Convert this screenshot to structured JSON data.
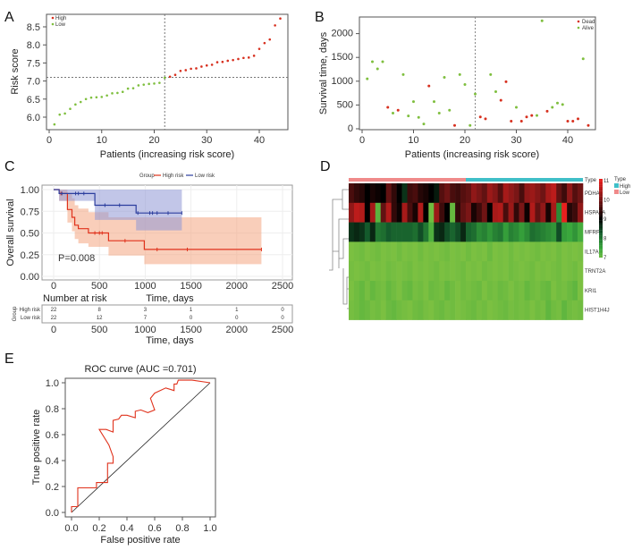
{
  "chart_data": [
    {
      "panel": "A",
      "type": "scatter",
      "xlabel": "Patients (increasing risk score)",
      "ylabel": "Risk score",
      "xticks": [
        "0",
        "10",
        "20",
        "30",
        "40"
      ],
      "yticks": [
        "6.0",
        "6.5",
        "7.0",
        "7.5",
        "8.0",
        "8.5"
      ],
      "xlim": [
        0,
        45
      ],
      "ylim": [
        5.75,
        8.8
      ],
      "legend": [
        {
          "label": "High",
          "color": "#d7301f"
        },
        {
          "label": "Low",
          "color": "#7fbf3f"
        }
      ],
      "legend_position": "top-left",
      "cutoff_x": 22,
      "cutoff_y": 7.1,
      "values": [
        5.8,
        6.07,
        6.1,
        6.23,
        6.35,
        6.42,
        6.5,
        6.54,
        6.55,
        6.56,
        6.6,
        6.66,
        6.67,
        6.7,
        6.79,
        6.8,
        6.88,
        6.9,
        6.92,
        6.93,
        6.95,
        7.09,
        7.12,
        7.17,
        7.28,
        7.3,
        7.34,
        7.35,
        7.4,
        7.43,
        7.45,
        7.52,
        7.53,
        7.56,
        7.58,
        7.61,
        7.64,
        7.65,
        7.7,
        7.89,
        8.05,
        8.15,
        8.54,
        8.73
      ],
      "groups": [
        "Low",
        "Low",
        "Low",
        "Low",
        "Low",
        "Low",
        "Low",
        "Low",
        "Low",
        "Low",
        "Low",
        "Low",
        "Low",
        "Low",
        "Low",
        "Low",
        "Low",
        "Low",
        "Low",
        "Low",
        "Low",
        "Low",
        "High",
        "High",
        "High",
        "High",
        "High",
        "High",
        "High",
        "High",
        "High",
        "High",
        "High",
        "High",
        "High",
        "High",
        "High",
        "High",
        "High",
        "High",
        "High",
        "High",
        "High",
        "High"
      ]
    },
    {
      "panel": "B",
      "type": "scatter",
      "xlabel": "Patients (increasing risk score)",
      "ylabel": "Survival time, days",
      "xticks": [
        "0",
        "10",
        "20",
        "30",
        "40"
      ],
      "yticks": [
        "0",
        "500",
        "1000",
        "1500",
        "2000"
      ],
      "xlim": [
        0,
        45
      ],
      "ylim": [
        0,
        2300
      ],
      "legend": [
        {
          "label": "Dead",
          "color": "#d7301f"
        },
        {
          "label": "Alive",
          "color": "#7fbf3f"
        }
      ],
      "legend_position": "top-right",
      "cutoff_x": 22,
      "values": [
        1050,
        1410,
        1260,
        1410,
        450,
        330,
        390,
        1140,
        270,
        570,
        240,
        100,
        900,
        570,
        330,
        1080,
        390,
        70,
        1140,
        930,
        70,
        730,
        250,
        210,
        1140,
        780,
        600,
        990,
        160,
        450,
        160,
        250,
        280,
        280,
        2270,
        370,
        450,
        540,
        510,
        160,
        160,
        210,
        1470,
        70
      ],
      "status": [
        "Alive",
        "Alive",
        "Alive",
        "Alive",
        "Dead",
        "Alive",
        "Dead",
        "Alive",
        "Alive",
        "Alive",
        "Alive",
        "Alive",
        "Dead",
        "Alive",
        "Alive",
        "Alive",
        "Alive",
        "Dead",
        "Alive",
        "Alive",
        "Alive",
        "Alive",
        "Dead",
        "Dead",
        "Alive",
        "Alive",
        "Dead",
        "Dead",
        "Dead",
        "Alive",
        "Dead",
        "Dead",
        "Dead",
        "Alive",
        "Alive",
        "Dead",
        "Alive",
        "Alive",
        "Alive",
        "Dead",
        "Dead",
        "Dead",
        "Alive",
        "Dead"
      ]
    },
    {
      "panel": "C",
      "type": "line",
      "title_legend": "Group",
      "xlabel": "Time, days",
      "ylabel": "Overall survival",
      "xticks": [
        "0",
        "500",
        "1000",
        "1500",
        "2000",
        "2500"
      ],
      "yticks": [
        "0.00",
        "0.25",
        "0.50",
        "0.75",
        "1.00"
      ],
      "xlim": [
        0,
        2500
      ],
      "ylim": [
        0,
        1
      ],
      "annotation": "P=0.008",
      "series": [
        {
          "name": "High risk",
          "color": "#e0321c",
          "band": "#f4a582",
          "steps": [
            [
              0,
              1
            ],
            [
              60,
              0.955
            ],
            [
              150,
              0.77
            ],
            [
              200,
              0.68
            ],
            [
              230,
              0.59
            ],
            [
              270,
              0.55
            ],
            [
              380,
              0.5
            ],
            [
              600,
              0.41
            ],
            [
              990,
              0.31
            ],
            [
              2270,
              0.31
            ]
          ],
          "lower": [
            [
              0,
              1
            ],
            [
              60,
              0.87
            ],
            [
              150,
              0.62
            ],
            [
              200,
              0.52
            ],
            [
              230,
              0.43
            ],
            [
              270,
              0.38
            ],
            [
              380,
              0.34
            ],
            [
              600,
              0.24
            ],
            [
              990,
              0.14
            ],
            [
              2270,
              0.14
            ]
          ],
          "upper": [
            [
              0,
              1
            ],
            [
              60,
              1
            ],
            [
              150,
              0.95
            ],
            [
              200,
              0.9
            ],
            [
              230,
              0.82
            ],
            [
              270,
              0.78
            ],
            [
              380,
              0.74
            ],
            [
              600,
              0.68
            ],
            [
              990,
              0.68
            ],
            [
              2270,
              0.68
            ]
          ],
          "censored": [
            80,
            450,
            500,
            530,
            780,
            1130,
            1460,
            2270
          ]
        },
        {
          "name": "Low risk",
          "color": "#2c3e9e",
          "band": "#8f97d6",
          "steps": [
            [
              0,
              1
            ],
            [
              60,
              0.955
            ],
            [
              450,
              0.82
            ],
            [
              900,
              0.73
            ],
            [
              1400,
              0.73
            ]
          ],
          "lower": [
            [
              0,
              1
            ],
            [
              60,
              0.87
            ],
            [
              450,
              0.65
            ],
            [
              900,
              0.53
            ],
            [
              1400,
              0.53
            ]
          ],
          "upper": [
            [
              0,
              1
            ],
            [
              60,
              1
            ],
            [
              450,
              1
            ],
            [
              900,
              1
            ],
            [
              1400,
              1
            ]
          ],
          "censored": [
            90,
            240,
            270,
            330,
            560,
            720,
            920,
            1050,
            1080,
            1130,
            1250,
            1400
          ]
        }
      ],
      "risk_table": {
        "title": "Number at risk",
        "axis_title": "Group",
        "xlabel": "Time, days",
        "rows": [
          {
            "name": "High risk",
            "values": [
              "22",
              "8",
              "3",
              "1",
              "1",
              "0"
            ]
          },
          {
            "name": "Low risk",
            "values": [
              "22",
              "12",
              "7",
              "0",
              "0",
              "0"
            ]
          }
        ]
      }
    },
    {
      "panel": "D",
      "type": "heatmap",
      "type_label": "Type",
      "scale_ticks": [
        "11",
        "10",
        "9",
        "8",
        "7"
      ],
      "scale_range": [
        7,
        11
      ],
      "legend_title": "Type",
      "legend": [
        {
          "label": "High",
          "color": "#3fbfc8"
        },
        {
          "label": "Low",
          "color": "#f08a8a"
        }
      ],
      "column_groups": {
        "Low": 22,
        "High": 22
      },
      "rows": [
        "PDHA1",
        "HSPA1A",
        "MFRP",
        "IL17A",
        "TRNT2A",
        "KRI1",
        "HIST1H4J"
      ],
      "values": [
        [
          9.6,
          9.4,
          9.3,
          9.0,
          9.2,
          9.1,
          9.0,
          9.8,
          9.4,
          9.0,
          8.6,
          9.5,
          9.6,
          9.3,
          9.2,
          9.0,
          8.8,
          9.7,
          9.9,
          9.6,
          9.5,
          9.7,
          9.8,
          10.2,
          10.0,
          9.8,
          10.3,
          10.1,
          9.7,
          10.4,
          10.2,
          10.0,
          9.6,
          10.2,
          10.3,
          10.1,
          9.9,
          10.4,
          10.6,
          9.8,
          9.5,
          10.2,
          9.7,
          9.9
        ],
        [
          10.2,
          10.6,
          10.5,
          9.0,
          10.4,
          7.2,
          9.8,
          10.5,
          9.4,
          9.1,
          10.4,
          9.6,
          9.2,
          10.5,
          9.0,
          7.0,
          10.3,
          9.5,
          9.0,
          7.1,
          9.4,
          9.8,
          10.0,
          9.2,
          9.5,
          9.9,
          9.0,
          10.4,
          10.5,
          9.6,
          10.3,
          9.4,
          10.0,
          9.1,
          10.5,
          9.8,
          10.2,
          9.2,
          10.4,
          7.8,
          11.0,
          9.3,
          9.5,
          10.2
        ],
        [
          8.6,
          8.7,
          8.6,
          8.3,
          8.7,
          8.0,
          8.1,
          8.3,
          8.2,
          8.2,
          8.2,
          8.2,
          8.1,
          8.4,
          8.0,
          7.3,
          8.6,
          8.7,
          8.4,
          8.2,
          8.4,
          8.7,
          8.2,
          8.1,
          7.8,
          7.9,
          7.7,
          7.9,
          8.0,
          7.6,
          7.9,
          7.8,
          7.6,
          7.8,
          8.1,
          8.0,
          7.9,
          7.8,
          7.7,
          8.4,
          7.6,
          7.5,
          7.7,
          7.4
        ],
        [
          6.9,
          6.95,
          7.0,
          6.9,
          6.95,
          7.0,
          6.9,
          6.95,
          6.9,
          7.0,
          6.9,
          6.95,
          6.9,
          7.0,
          6.9,
          6.95,
          6.9,
          6.95,
          7.0,
          6.9,
          6.95,
          6.9,
          7.0,
          6.9,
          6.95,
          6.9,
          7.05,
          6.9,
          6.95,
          6.9,
          7.0,
          6.9,
          6.95,
          6.9,
          6.95,
          7.0,
          6.9,
          6.95,
          6.9,
          7.0,
          6.9,
          6.95,
          6.9,
          6.95
        ],
        [
          6.95,
          6.9,
          6.95,
          7.0,
          6.9,
          6.95,
          6.9,
          7.0,
          6.95,
          6.9,
          6.95,
          7.0,
          6.9,
          6.95,
          6.9,
          6.95,
          7.0,
          6.9,
          6.95,
          6.9,
          6.95,
          7.0,
          6.9,
          6.95,
          6.9,
          7.0,
          6.95,
          6.9,
          6.95,
          6.9,
          7.0,
          6.95,
          6.9,
          6.95,
          7.0,
          6.9,
          6.95,
          6.9,
          6.95,
          7.0,
          6.9,
          6.95,
          7.0,
          6.9
        ],
        [
          6.9,
          7.0,
          7.1,
          6.95,
          7.1,
          7.0,
          6.95,
          7.1,
          7.0,
          6.9,
          7.05,
          7.1,
          6.95,
          7.0,
          6.9,
          7.05,
          7.0,
          6.95,
          7.1,
          7.0,
          6.9,
          7.0,
          6.95,
          7.0,
          7.05,
          6.9,
          7.0,
          6.95,
          7.05,
          7.0,
          6.9,
          7.0,
          6.95,
          7.1,
          7.0,
          6.95,
          7.05,
          7.1,
          6.9,
          7.0,
          6.95,
          7.05,
          7.15,
          6.9
        ],
        [
          6.95,
          7.0,
          7.1,
          7.05,
          6.95,
          7.0,
          6.9,
          7.05,
          7.1,
          7.0,
          6.95,
          6.9,
          7.0,
          7.05,
          6.95,
          6.9,
          7.0,
          7.05,
          6.95,
          7.0,
          6.9,
          6.95,
          7.0,
          7.05,
          6.95,
          7.0,
          6.9,
          6.95,
          7.0,
          7.05,
          6.95,
          7.0,
          6.95,
          7.0,
          6.9,
          7.0,
          6.95,
          7.15,
          7.0,
          6.95,
          7.15,
          7.0,
          6.95,
          7.0
        ]
      ]
    },
    {
      "panel": "E",
      "type": "line",
      "title": "ROC curve (AUC =0.701)",
      "xlabel": "False positive rate",
      "ylabel": "True positive rate",
      "xticks": [
        "0.0",
        "0.2",
        "0.4",
        "0.6",
        "0.8",
        "1.0"
      ],
      "yticks": [
        "0.0",
        "0.2",
        "0.4",
        "0.6",
        "0.8",
        "1.0"
      ],
      "xlim": [
        0,
        1
      ],
      "ylim": [
        0,
        1
      ],
      "series": [
        {
          "name": "ROC",
          "color": "#e0321c",
          "points": [
            [
              0,
              0
            ],
            [
              0,
              0.045
            ],
            [
              0.045,
              0.045
            ],
            [
              0.045,
              0.19
            ],
            [
              0.18,
              0.19
            ],
            [
              0.18,
              0.23
            ],
            [
              0.26,
              0.23
            ],
            [
              0.26,
              0.38
            ],
            [
              0.3,
              0.38
            ],
            [
              0.3,
              0.43
            ],
            [
              0.27,
              0.52
            ],
            [
              0.2,
              0.64
            ],
            [
              0.25,
              0.64
            ],
            [
              0.3,
              0.62
            ],
            [
              0.3,
              0.71
            ],
            [
              0.34,
              0.72
            ],
            [
              0.36,
              0.75
            ],
            [
              0.4,
              0.75
            ],
            [
              0.46,
              0.73
            ],
            [
              0.46,
              0.78
            ],
            [
              0.5,
              0.79
            ],
            [
              0.55,
              0.77
            ],
            [
              0.6,
              0.79
            ],
            [
              0.57,
              0.88
            ],
            [
              0.6,
              0.92
            ],
            [
              0.68,
              0.96
            ],
            [
              0.74,
              0.94
            ],
            [
              0.74,
              0.99
            ],
            [
              0.76,
              0.99
            ],
            [
              0.77,
              1.02
            ],
            [
              0.87,
              1.02
            ],
            [
              1.0,
              1.0
            ]
          ]
        },
        {
          "name": "Reference",
          "color": "#222",
          "points": [
            [
              0,
              0
            ],
            [
              1,
              1
            ]
          ]
        }
      ]
    }
  ]
}
